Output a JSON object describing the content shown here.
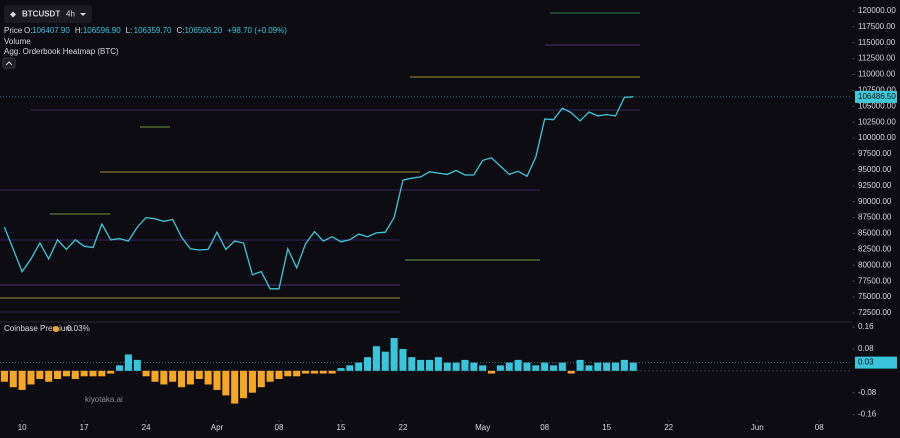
{
  "header": {
    "symbol": "BTCUSDT",
    "interval": "4h"
  },
  "legend": {
    "price": "Price",
    "ohlc": [
      {
        "label": "O:",
        "value": "106407.90"
      },
      {
        "label": "H:",
        "value": "106596.90"
      },
      {
        "label": "L:",
        "value": "106359.70"
      },
      {
        "label": "C:",
        "value": "106506.20"
      }
    ],
    "change": "+98.70 (+0.09%)",
    "volume": "Volume",
    "heatmap": "Agg. Orderbook Heatmap (BTC)"
  },
  "watermark": "kiyotaka.ai",
  "chart_data": [
    {
      "type": "line",
      "color": "#3fc8d8",
      "x": [
        -2,
        -1,
        0,
        1,
        2,
        3,
        4,
        5,
        6,
        7,
        8,
        9,
        10,
        11,
        12,
        13,
        14,
        15,
        16,
        17,
        18,
        19,
        20,
        21,
        22,
        23,
        24,
        25,
        26,
        27,
        28,
        29,
        30,
        31,
        32,
        33,
        34,
        35,
        36,
        37,
        38,
        39,
        40,
        41,
        42,
        43,
        44,
        45,
        46,
        47,
        48,
        49,
        50,
        51,
        52,
        53,
        54,
        55,
        56,
        57,
        58,
        59,
        60,
        61,
        62,
        63,
        64,
        65,
        66,
        67,
        68,
        69
      ],
      "values": [
        86000,
        82500,
        79000,
        81000,
        83500,
        81000,
        84000,
        82500,
        84000,
        83000,
        82800,
        86500,
        84000,
        84200,
        83800,
        86000,
        87500,
        87300,
        86900,
        87200,
        84400,
        82600,
        82400,
        82500,
        85200,
        82500,
        83800,
        83500,
        78500,
        79000,
        76300,
        76300,
        82600,
        79600,
        83400,
        85300,
        83800,
        84500,
        83700,
        84000,
        84900,
        84500,
        85100,
        85200,
        87500,
        93400,
        93700,
        93900,
        94700,
        94500,
        94300,
        94900,
        94200,
        94200,
        96500,
        96900,
        95600,
        94300,
        94800,
        94000,
        97000,
        103000,
        102900,
        104700,
        104000,
        102700,
        104100,
        103500,
        103700,
        103500,
        106400,
        106500
      ],
      "xlim": [
        -2.5,
        93.7
      ],
      "ylim": [
        71080,
        121250
      ],
      "yticks": [
        {
          "value": 72500,
          "label": "72500.00"
        },
        {
          "value": 75000,
          "label": "75000.00"
        },
        {
          "value": 77500,
          "label": "77500.00"
        },
        {
          "value": 80000,
          "label": "80000.00"
        },
        {
          "value": 82500,
          "label": "82500.00"
        },
        {
          "value": 85000,
          "label": "85000.00"
        },
        {
          "value": 87500,
          "label": "87500.00"
        },
        {
          "value": 90000,
          "label": "90000.00"
        },
        {
          "value": 92500,
          "label": "92500.00"
        },
        {
          "value": 95000,
          "label": "95000.00"
        },
        {
          "value": 97500,
          "label": "97500.00"
        },
        {
          "value": 100000,
          "label": "100000.00"
        },
        {
          "value": 102500,
          "label": "102500.00"
        },
        {
          "value": 105000,
          "label": "105000.00"
        },
        {
          "value": 107500,
          "label": "107500.00"
        },
        {
          "value": 110000,
          "label": "110000.00"
        },
        {
          "value": 112500,
          "label": "112500.00"
        },
        {
          "value": 115000,
          "label": "115000.00"
        },
        {
          "value": 117500,
          "label": "117500.00"
        },
        {
          "value": 120000,
          "label": "120000.00"
        }
      ],
      "current": {
        "value": 106486.5,
        "label": "106486.50"
      }
    },
    {
      "type": "bar",
      "title": "Coinbase Premium",
      "value_text": "0.03%",
      "positive_color": "#39c5dc",
      "negative_color": "#f5a623",
      "x": [
        -2,
        -1,
        0,
        1,
        2,
        3,
        4,
        5,
        6,
        7,
        8,
        9,
        10,
        11,
        12,
        13,
        14,
        15,
        16,
        17,
        18,
        19,
        20,
        21,
        22,
        23,
        24,
        25,
        26,
        27,
        28,
        29,
        30,
        31,
        32,
        33,
        34,
        35,
        36,
        37,
        38,
        39,
        40,
        41,
        42,
        43,
        44,
        45,
        46,
        47,
        48,
        49,
        50,
        51,
        52,
        53,
        54,
        55,
        56,
        57,
        58,
        59,
        60,
        61,
        62,
        63,
        64,
        65,
        66,
        67,
        68,
        69
      ],
      "values": [
        -0.04,
        -0.06,
        -0.07,
        -0.05,
        -0.03,
        -0.04,
        -0.03,
        -0.02,
        -0.03,
        -0.02,
        -0.02,
        -0.02,
        -0.01,
        0.02,
        0.06,
        0.04,
        -0.02,
        -0.04,
        -0.05,
        -0.04,
        -0.06,
        -0.05,
        -0.03,
        -0.05,
        -0.07,
        -0.09,
        -0.12,
        -0.1,
        -0.08,
        -0.06,
        -0.04,
        -0.03,
        -0.02,
        -0.02,
        -0.01,
        -0.01,
        -0.01,
        -0.01,
        0.01,
        0.02,
        0.03,
        0.05,
        0.09,
        0.07,
        0.12,
        0.08,
        0.05,
        0.04,
        0.04,
        0.05,
        0.03,
        0.03,
        0.04,
        0.03,
        0.02,
        -0.01,
        0.02,
        0.03,
        0.04,
        0.03,
        0.02,
        0.03,
        0.02,
        0.03,
        -0.01,
        0.04,
        0.02,
        0.03,
        0.03,
        0.03,
        0.04,
        0.03
      ],
      "xlim": [
        -2.5,
        93.7
      ],
      "ylim": [
        -0.18,
        0.175
      ],
      "yticks": [
        -0.16,
        -0.08,
        0.08,
        0.16
      ],
      "current": {
        "value": 0.03,
        "label": "0.03"
      },
      "xticks": [
        {
          "value": 0,
          "label": "10"
        },
        {
          "value": 7,
          "label": "17"
        },
        {
          "value": 14,
          "label": "24"
        },
        {
          "value": 22,
          "label": "Apr"
        },
        {
          "value": 29,
          "label": "08"
        },
        {
          "value": 36,
          "label": "15"
        },
        {
          "value": 43,
          "label": "22"
        },
        {
          "value": 52,
          "label": "May"
        },
        {
          "value": 59,
          "label": "08"
        },
        {
          "value": 66,
          "label": "15"
        },
        {
          "value": 73,
          "label": "22"
        },
        {
          "value": 83,
          "label": "Jun"
        },
        {
          "value": 90,
          "label": "08"
        }
      ]
    }
  ]
}
